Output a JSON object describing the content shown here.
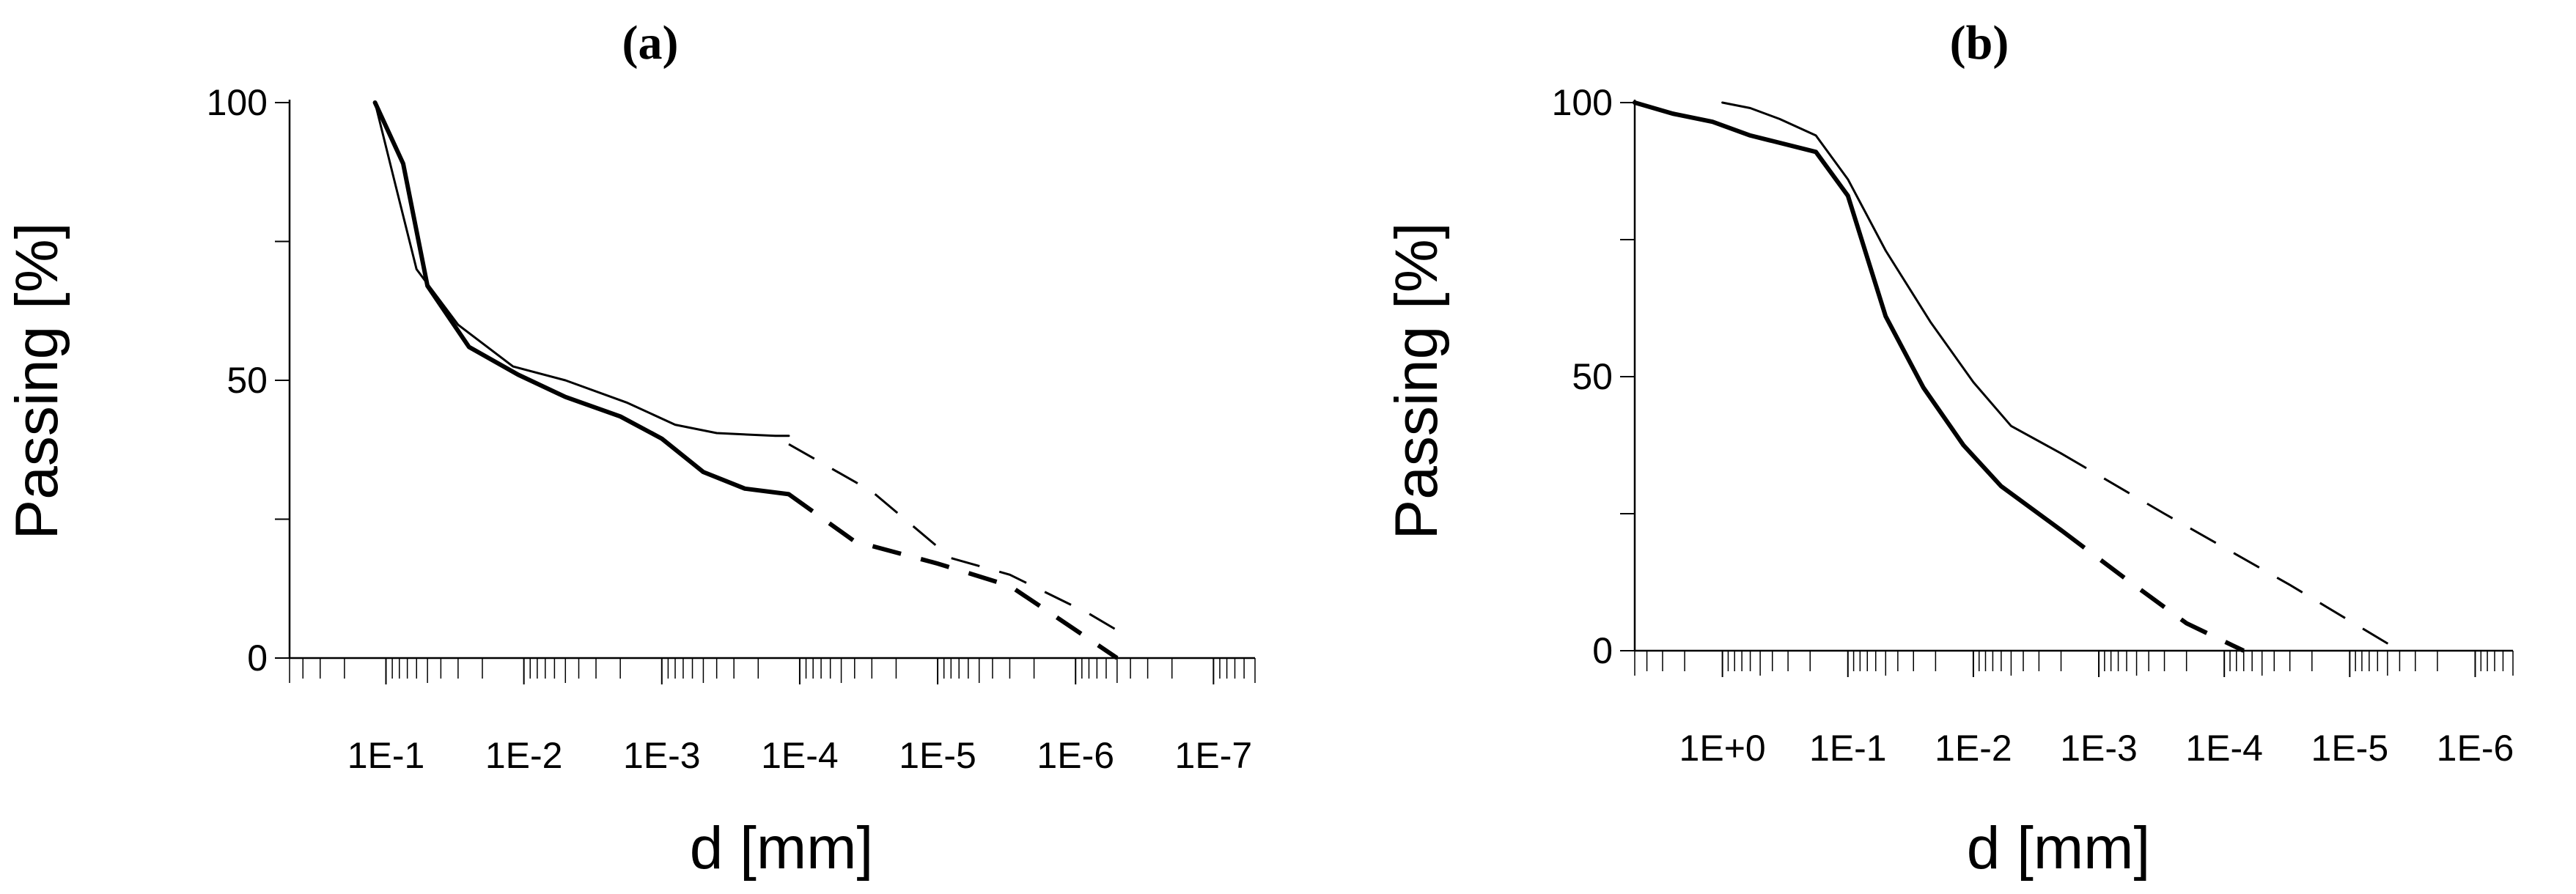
{
  "chart_data": [
    {
      "type": "line",
      "title": "(a)",
      "xlabel": "d [mm]",
      "ylabel": "Passing  [%]",
      "x_scale": "log-reversed",
      "xlim": [
        0.5,
        5e-08
      ],
      "ylim": [
        0,
        100
      ],
      "yticks": [
        0,
        50,
        100
      ],
      "xtick_labels": [
        "1E-1",
        "1E-2",
        "1E-3",
        "1E-4",
        "1E-5",
        "1E-6",
        "1E-7"
      ],
      "xtick_values": [
        0.1,
        0.01,
        0.001,
        0.0001,
        1e-05,
        1e-06,
        1e-07
      ],
      "grid": false,
      "series": [
        {
          "style": "thin",
          "color": "#000000",
          "solid": [
            [
              0.12,
              100
            ],
            [
              0.085,
              85
            ],
            [
              0.06,
              70
            ],
            [
              0.03,
              60
            ],
            [
              0.012,
              52.5
            ],
            [
              0.005,
              50
            ],
            [
              0.0018,
              46
            ],
            [
              0.0008,
              42
            ],
            [
              0.0004,
              40.5
            ],
            [
              0.00015,
              40
            ],
            [
              0.00012,
              40
            ]
          ],
          "dashed": [
            [
              0.00012,
              38.5
            ],
            [
              3e-05,
              30
            ],
            [
              8e-06,
              18
            ],
            [
              3e-06,
              15
            ],
            [
              8e-07,
              8
            ],
            [
              5e-07,
              5
            ]
          ]
        },
        {
          "style": "thick",
          "color": "#000000",
          "solid": [
            [
              0.12,
              100
            ],
            [
              0.075,
              89
            ],
            [
              0.05,
              67
            ],
            [
              0.025,
              56
            ],
            [
              0.011,
              51
            ],
            [
              0.005,
              47
            ],
            [
              0.002,
              43.5
            ],
            [
              0.001,
              39.5
            ],
            [
              0.0005,
              33.5
            ],
            [
              0.00025,
              30.5
            ],
            [
              0.00012,
              29.5
            ]
          ],
          "dashed": [
            [
              0.00012,
              29.5
            ],
            [
              4e-05,
              21
            ],
            [
              1e-05,
              17
            ],
            [
              3e-06,
              13
            ],
            [
              1.5e-06,
              8
            ],
            [
              5e-07,
              0
            ]
          ]
        }
      ]
    },
    {
      "type": "line",
      "title": "(b)",
      "xlabel": "d [mm]",
      "ylabel": "Passing  [%]",
      "x_scale": "log-reversed",
      "xlim": [
        5,
        5e-07
      ],
      "ylim": [
        0,
        100
      ],
      "yticks": [
        0,
        50,
        100
      ],
      "xtick_labels": [
        "1E+0",
        "1E-1",
        "1E-2",
        "1E-3",
        "1E-4",
        "1E-5",
        "1E-6"
      ],
      "xtick_values": [
        1,
        0.1,
        0.01,
        0.001,
        0.0001,
        1e-05,
        1e-06
      ],
      "grid": false,
      "series": [
        {
          "style": "thin",
          "color": "#000000",
          "solid": [
            [
              1,
              100
            ],
            [
              0.6,
              99
            ],
            [
              0.35,
              97
            ],
            [
              0.18,
              94
            ],
            [
              0.1,
              86
            ],
            [
              0.05,
              73
            ],
            [
              0.022,
              60
            ],
            [
              0.01,
              49
            ],
            [
              0.005,
              41
            ],
            [
              0.002,
              36
            ]
          ],
          "dashed": [
            [
              0.002,
              36
            ],
            [
              0.0003,
              25
            ],
            [
              3e-05,
              12
            ],
            [
              4e-06,
              0
            ]
          ]
        },
        {
          "style": "thick",
          "color": "#000000",
          "solid": [
            [
              5,
              100
            ],
            [
              2.5,
              98
            ],
            [
              1.2,
              96.5
            ],
            [
              0.6,
              94
            ],
            [
              0.4,
              93
            ],
            [
              0.18,
              91
            ],
            [
              0.1,
              83
            ],
            [
              0.05,
              61
            ],
            [
              0.025,
              48
            ],
            [
              0.012,
              37.5
            ],
            [
              0.006,
              30
            ],
            [
              0.002,
              22
            ]
          ],
          "dashed": [
            [
              0.002,
              22
            ],
            [
              0.0006,
              13
            ],
            [
              0.0002,
              5
            ],
            [
              7e-05,
              0
            ]
          ]
        }
      ]
    }
  ]
}
